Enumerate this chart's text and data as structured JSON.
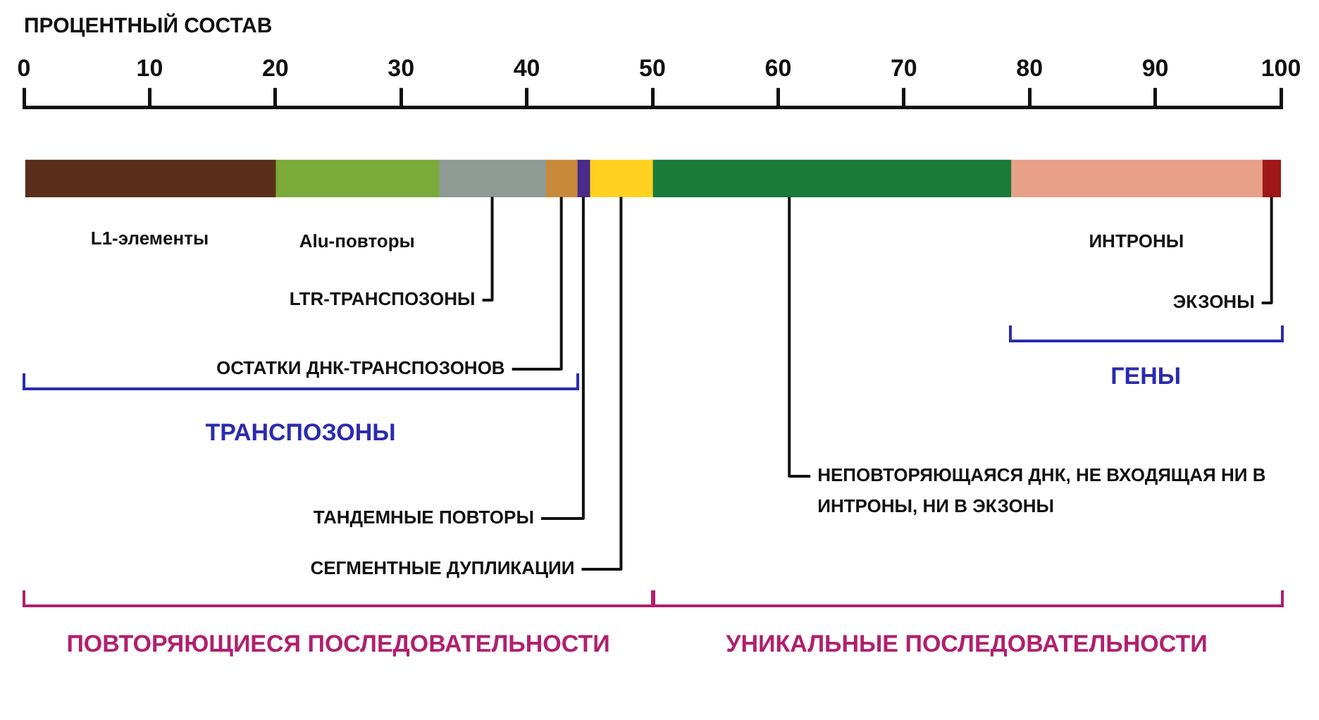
{
  "chart_data": {
    "type": "bar",
    "title": "ПРОЦЕНТНЫЙ СОСТАВ",
    "orientation": "horizontal",
    "stacked": true,
    "categories": [
      null
    ],
    "xlim": [
      0,
      100
    ],
    "xticks": [
      0,
      10,
      20,
      30,
      40,
      50,
      60,
      70,
      80,
      90,
      100
    ],
    "series": [
      {
        "name": "L1-элементы",
        "color": "#5a2e1a",
        "values": [
          20
        ]
      },
      {
        "name": "Alu-повторы",
        "color": "#7aaa3a",
        "values": [
          13
        ]
      },
      {
        "name": "LTR-ТРАНСПОЗОНЫ",
        "color": "#8f9a94",
        "values": [
          8.5
        ]
      },
      {
        "name": "ОСТАТКИ ДНК-ТРАНСПОЗОНОВ",
        "color": "#c88a3a",
        "values": [
          2.5
        ]
      },
      {
        "name": "ТАНДЕМНЫЕ ПОВТОРЫ",
        "color": "#4a2a8a",
        "values": [
          1
        ]
      },
      {
        "name": "СЕГМЕНТНЫЕ ДУПЛИКАЦИИ",
        "color": "#ffd020",
        "values": [
          5
        ]
      },
      {
        "name": "НЕПОВТОРЯЮЩАЯСЯ ДНК, НЕ ВХОДЯЩАЯ НИ В ИНТРОНЫ, НИ В ЭКЗОНЫ",
        "color": "#1a7a3a",
        "values": [
          28.5
        ]
      },
      {
        "name": "ИНТРОНЫ",
        "color": "#e8a088",
        "values": [
          20
        ]
      },
      {
        "name": "ЭКЗОНЫ",
        "color": "#a01818",
        "values": [
          1.5
        ]
      }
    ],
    "annotations": [
      "ТРАНСПОЗОНЫ",
      "ГЕНЫ",
      "ПОВТОРЯЮЩИЕСЯ ПОСЛЕДОВАТЕЛЬНОСТИ",
      "УНИКАЛЬНЫЕ ПОСЛЕДОВАТЕЛЬНОСТИ"
    ]
  }
}
